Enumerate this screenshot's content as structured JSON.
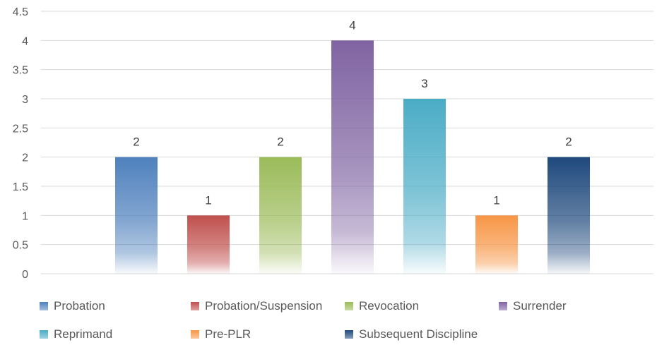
{
  "chart_data": {
    "type": "bar",
    "title": "",
    "xlabel": "",
    "ylabel": "",
    "ylim": [
      0,
      4.5
    ],
    "yticks": [
      "0",
      "0.5",
      "1",
      "1.5",
      "2",
      "2.5",
      "3",
      "3.5",
      "4",
      "4.5"
    ],
    "grid": true,
    "legend_position": "bottom",
    "series": [
      {
        "name": "Probation",
        "value": 2,
        "label": "2",
        "color": "#4f81bd"
      },
      {
        "name": "Probation/Suspension",
        "value": 1,
        "label": "1",
        "color": "#c0504d"
      },
      {
        "name": "Revocation",
        "value": 2,
        "label": "2",
        "color": "#9bbb59"
      },
      {
        "name": "Surrender",
        "value": 4,
        "label": "4",
        "color": "#8064a2"
      },
      {
        "name": "Reprimand",
        "value": 3,
        "label": "3",
        "color": "#4bacc6"
      },
      {
        "name": "Pre-PLR",
        "value": 1,
        "label": "1",
        "color": "#f79646"
      },
      {
        "name": "Subsequent Discipline",
        "value": 2,
        "label": "2",
        "color": "#1f497d"
      }
    ]
  }
}
